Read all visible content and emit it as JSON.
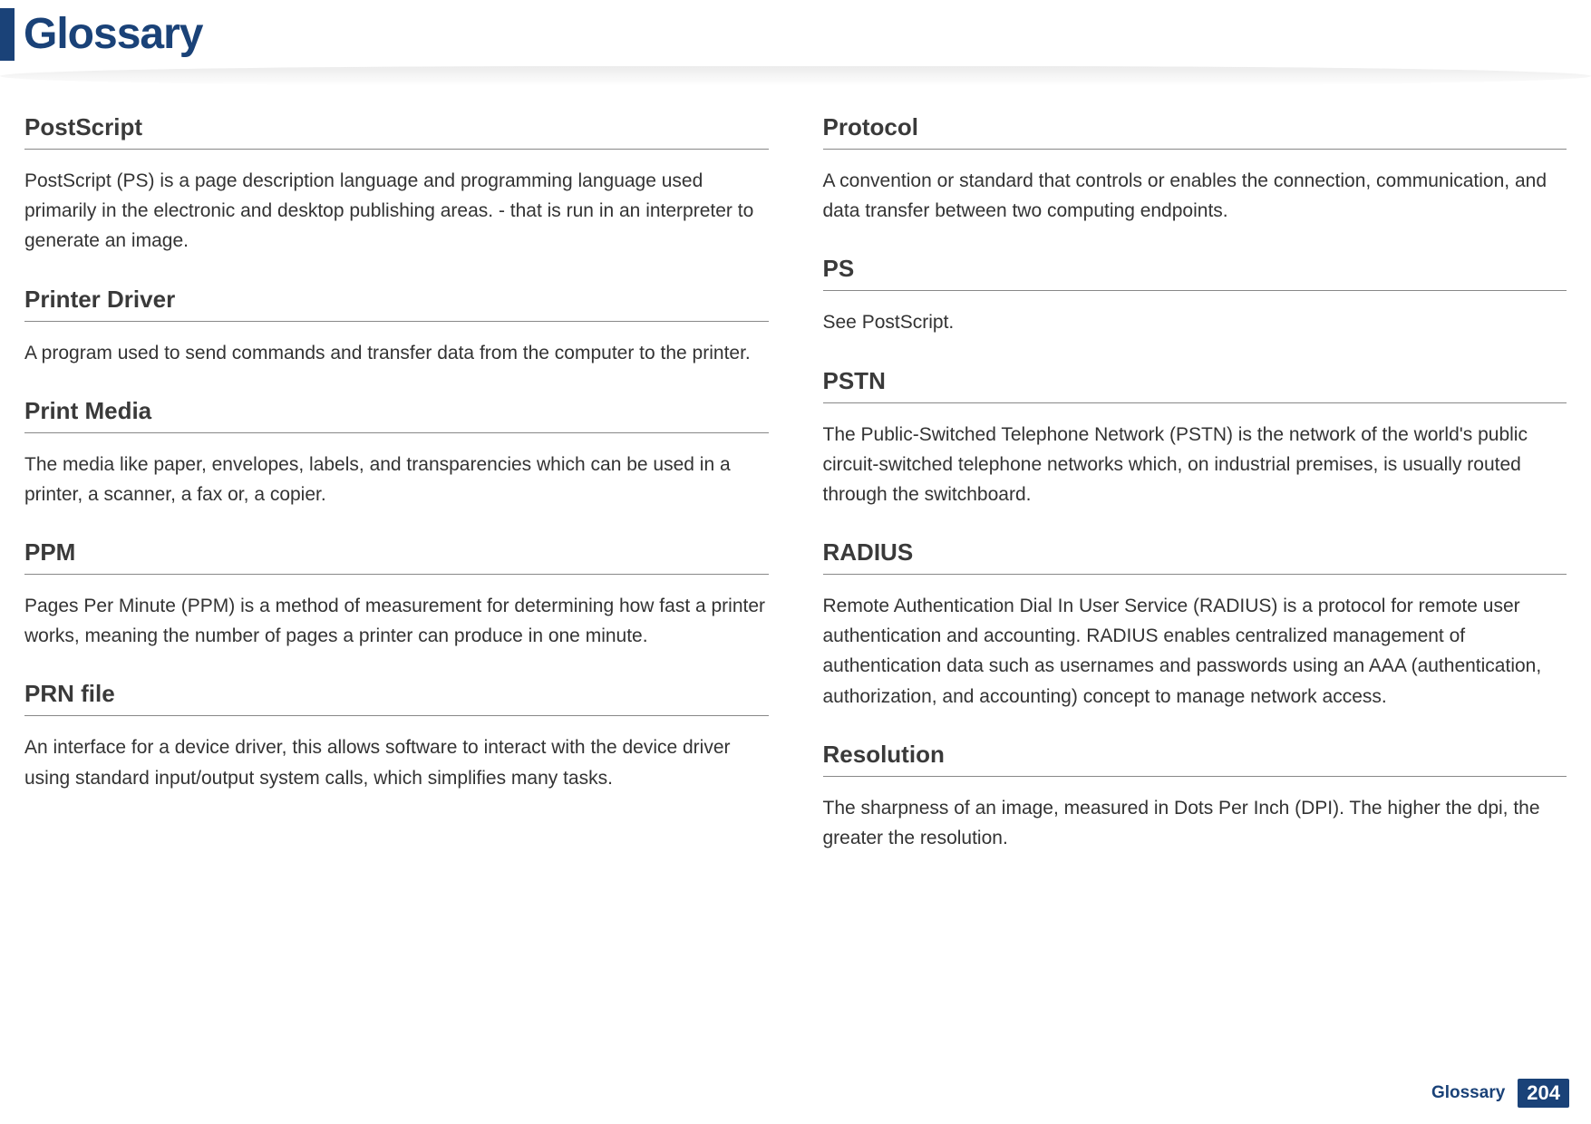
{
  "header": {
    "title": "Glossary",
    "title_color": "#1a4278",
    "bar_color": "#1a4278"
  },
  "columns": [
    {
      "entries": [
        {
          "title": "PostScript",
          "body": "PostScript (PS) is a page description language and programming language used primarily in the electronic and desktop publishing areas. - that is run in an interpreter to generate an image."
        },
        {
          "title": "Printer Driver",
          "body": "A program used to send commands and transfer data from the computer to the printer."
        },
        {
          "title": "Print Media",
          "body": "The media like paper, envelopes, labels, and transparencies which can be used in a printer, a scanner, a fax or, a copier."
        },
        {
          "title": "PPM",
          "body": "Pages Per Minute (PPM) is a method of measurement for determining how fast a printer works, meaning the number of pages a printer can produce in one minute."
        },
        {
          "title": "PRN file",
          "body": "An interface for a device driver, this allows software to interact with the device driver using standard input/output system calls, which simplifies many tasks."
        }
      ]
    },
    {
      "entries": [
        {
          "title": "Protocol",
          "body": "A convention or standard that controls or enables the connection, communication, and data transfer between two computing endpoints."
        },
        {
          "title": "PS",
          "body": "See PostScript."
        },
        {
          "title": "PSTN",
          "body": "The Public-Switched Telephone Network (PSTN) is the network of the world's public circuit-switched telephone networks which, on industrial premises, is usually routed through the switchboard."
        },
        {
          "title": "RADIUS",
          "body": "Remote Authentication Dial In User Service (RADIUS) is a protocol for remote user authentication and accounting. RADIUS enables centralized management of authentication data such as usernames and passwords using an AAA (authentication, authorization, and accounting) concept to manage network access."
        },
        {
          "title": "Resolution",
          "body": "The sharpness of an image, measured in Dots Per Inch (DPI). The higher the dpi, the greater the resolution."
        }
      ]
    }
  ],
  "footer": {
    "label": "Glossary",
    "page": "204",
    "bg_color": "#1a4278"
  },
  "styling": {
    "title_fontsize": 48,
    "entry_title_fontsize": 26,
    "body_fontsize": 21,
    "rule_color": "#888888",
    "text_color": "#333333",
    "heading_color": "#3a3a3a",
    "background": "#ffffff"
  }
}
